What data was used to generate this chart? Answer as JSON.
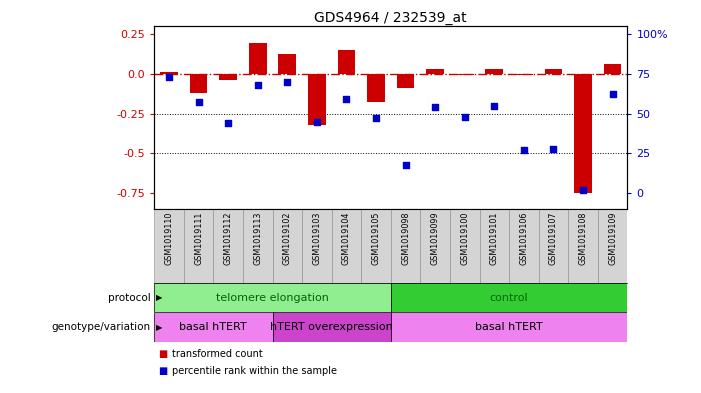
{
  "title": "GDS4964 / 232539_at",
  "samples": [
    "GSM1019110",
    "GSM1019111",
    "GSM1019112",
    "GSM1019113",
    "GSM1019102",
    "GSM1019103",
    "GSM1019104",
    "GSM1019105",
    "GSM1019098",
    "GSM1019099",
    "GSM1019100",
    "GSM1019101",
    "GSM1019106",
    "GSM1019107",
    "GSM1019108",
    "GSM1019109"
  ],
  "transformed_count": [
    0.01,
    -0.12,
    -0.04,
    0.19,
    0.12,
    -0.32,
    0.15,
    -0.18,
    -0.09,
    0.03,
    -0.01,
    0.03,
    -0.01,
    0.03,
    -0.75,
    0.06
  ],
  "percentile_rank": [
    0.73,
    0.57,
    0.44,
    0.68,
    0.7,
    0.45,
    0.59,
    0.47,
    0.18,
    0.54,
    0.48,
    0.55,
    0.27,
    0.28,
    0.02,
    0.62
  ],
  "protocol_groups": [
    {
      "label": "telomere elongation",
      "start": 0,
      "end": 8,
      "color": "#90EE90"
    },
    {
      "label": "control",
      "start": 8,
      "end": 16,
      "color": "#33CC33"
    }
  ],
  "genotype_groups": [
    {
      "label": "basal hTERT",
      "start": 0,
      "end": 4,
      "color": "#EE82EE"
    },
    {
      "label": "hTERT overexpression",
      "start": 4,
      "end": 8,
      "color": "#CC44CC"
    },
    {
      "label": "basal hTERT",
      "start": 8,
      "end": 16,
      "color": "#EE82EE"
    }
  ],
  "bar_color": "#CC0000",
  "scatter_color": "#0000CC",
  "dashed_line_color": "#CC0000",
  "ylim_left": [
    -0.85,
    0.3
  ],
  "yticks_left": [
    0.25,
    0.0,
    -0.25,
    -0.5,
    -0.75
  ],
  "yticks_right_vals": [
    100,
    75,
    50,
    25,
    0
  ],
  "legend_red": "transformed count",
  "legend_blue": "percentile rank within the sample",
  "label_protocol": "protocol",
  "label_genotype": "genotype/variation",
  "col_bg": "#D4D4D4",
  "col_border": "#888888"
}
